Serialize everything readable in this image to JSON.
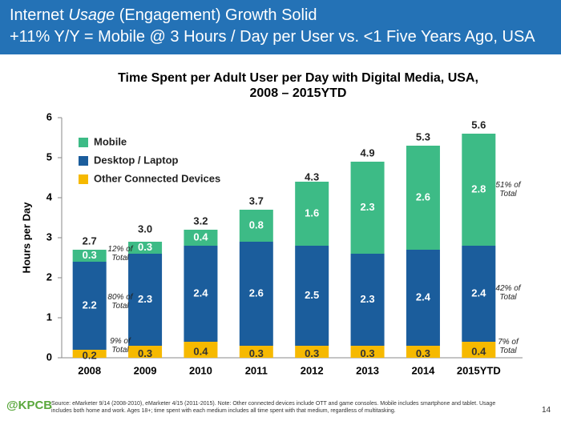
{
  "header": {
    "line1": [
      "Internet ",
      "Usage",
      " (Engagement) Growth Solid"
    ],
    "line2": "+11% Y/Y = Mobile @ 3 Hours / Day per User vs. <1  Five Years Ago, USA"
  },
  "chart_data": {
    "type": "stacked_bar",
    "title": [
      "Time Spent per Adult User per Day with Digital Media, USA,",
      "2008 – 2015YTD"
    ],
    "y_label": "Hours per Day",
    "categories": [
      "2008",
      "2009",
      "2010",
      "2011",
      "2012",
      "2013",
      "2014",
      "2015YTD"
    ],
    "series": [
      {
        "name": "Mobile",
        "color": "#3dbb86",
        "values": [
          0.3,
          0.3,
          0.4,
          0.8,
          1.6,
          2.3,
          2.6,
          2.8
        ]
      },
      {
        "name": "Desktop / Laptop",
        "color": "#1b5d9c",
        "values": [
          2.2,
          2.3,
          2.4,
          2.6,
          2.5,
          2.3,
          2.4,
          2.4
        ]
      },
      {
        "name": "Other Connected Devices",
        "color": "#f6b900",
        "values": [
          0.2,
          0.3,
          0.4,
          0.3,
          0.3,
          0.3,
          0.3,
          0.4
        ]
      }
    ],
    "totals": {
      "values": [
        2.7,
        3,
        3.2,
        3.7,
        4.3,
        4.9,
        5.3,
        5.6
      ],
      "value_labels": [
        "2.7",
        "3.0",
        "3.2",
        "3.7",
        "4.3",
        "4.9",
        "5.3",
        "5.6"
      ]
    },
    "annotations": [
      "12% of Total",
      "80% of Total",
      "9% of Total",
      "51% of Total",
      "42% of Total",
      "7% of Total"
    ],
    "ylim": [
      0,
      6
    ],
    "yticks": [
      0,
      1,
      2,
      3,
      4,
      5,
      6
    ],
    "legend": "upper left"
  },
  "footer": {
    "brand": "@KPCB",
    "source": "Source: eMarketer 9/14 (2008-2010), eMarketer 4/15 (2011-2015). Note: Other connected devices include OTT and game consoles. Mobile includes smartphone and tablet. Usage includes both home and work. Ages 18+; time spent with each medium includes all time spent with that medium, regardless of multitasking.",
    "page": "14"
  }
}
